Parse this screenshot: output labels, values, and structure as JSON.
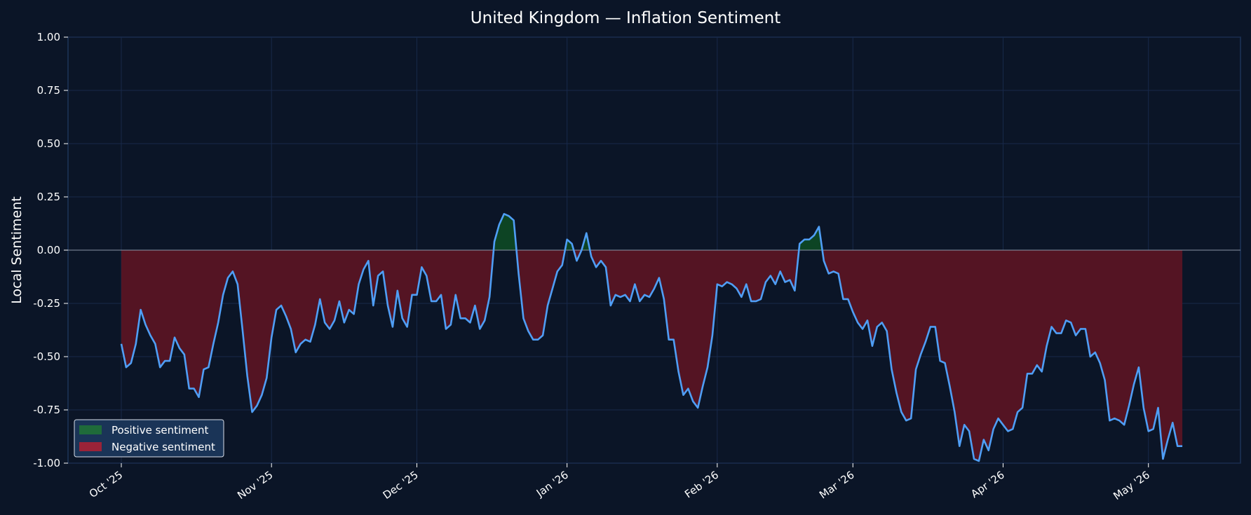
{
  "chart_data": {
    "type": "area",
    "title": "United Kingdom — Inflation Sentiment",
    "xlabel": "",
    "ylabel": "Local Sentiment",
    "ylim": [
      -1.0,
      1.0
    ],
    "yticks": [
      "1.00",
      "0.75",
      "0.50",
      "0.25",
      "0.00",
      "-0.25",
      "-0.50",
      "-0.75",
      "-1.00"
    ],
    "xticks": [
      {
        "date": "2025-10-01",
        "label": "Oct '25"
      },
      {
        "date": "2025-11-01",
        "label": "Nov '25"
      },
      {
        "date": "2025-12-01",
        "label": "Dec '25"
      },
      {
        "date": "2026-01-01",
        "label": "Jan '26"
      },
      {
        "date": "2026-02-01",
        "label": "Feb '26"
      },
      {
        "date": "2026-03-01",
        "label": "Mar '26"
      },
      {
        "date": "2026-04-01",
        "label": "Apr '26"
      },
      {
        "date": "2026-05-01",
        "label": "May '26"
      }
    ],
    "xlim": [
      "2025-09-20",
      "2026-05-20"
    ],
    "grid": true,
    "legend_position": "lower-left",
    "legend": [
      "Positive sentiment",
      "Negative sentiment"
    ],
    "colors": {
      "background": "#0b1527",
      "line": "#4f9ef5",
      "positive": "#0d4424",
      "negative": "#541423",
      "grid": "#18294a",
      "zero_line": "#8a94a6",
      "legend_bg": "#1a3457",
      "legend_positive": "#1f6b3a",
      "legend_negative": "#9a2338"
    },
    "series": [
      {
        "start_date": "2025-10-01",
        "values": [
          -0.44,
          -0.55,
          -0.53,
          -0.44,
          -0.28,
          -0.35,
          -0.4,
          -0.44,
          -0.55,
          -0.52,
          -0.52,
          -0.41,
          -0.46,
          -0.49,
          -0.65,
          -0.65,
          -0.69,
          -0.56,
          -0.55,
          -0.44,
          -0.34,
          -0.21,
          -0.13,
          -0.1,
          -0.16,
          -0.37,
          -0.59,
          -0.76,
          -0.73,
          -0.68,
          -0.6,
          -0.41,
          -0.28,
          -0.26,
          -0.31,
          -0.37,
          -0.48,
          -0.44,
          -0.42,
          -0.43,
          -0.35,
          -0.23,
          -0.34,
          -0.37,
          -0.33,
          -0.24,
          -0.34,
          -0.28,
          -0.3,
          -0.16,
          -0.09,
          -0.05,
          -0.26,
          -0.12,
          -0.1,
          -0.26,
          -0.36,
          -0.19,
          -0.32,
          -0.36,
          -0.21,
          -0.21,
          -0.08,
          -0.12,
          -0.24,
          -0.24,
          -0.21,
          -0.37,
          -0.35,
          -0.21,
          -0.32,
          -0.32,
          -0.34,
          -0.26,
          -0.37,
          -0.33,
          -0.22,
          0.04,
          0.12,
          0.17,
          0.16,
          0.14,
          -0.11,
          -0.32,
          -0.38,
          -0.42,
          -0.42,
          -0.4,
          -0.26,
          -0.18,
          -0.1,
          -0.07,
          0.05,
          0.03,
          -0.05,
          0.0,
          0.08,
          -0.03,
          -0.08,
          -0.05,
          -0.08,
          -0.26,
          -0.21,
          -0.22,
          -0.21,
          -0.24,
          -0.16,
          -0.24,
          -0.21,
          -0.22,
          -0.18,
          -0.13,
          -0.23,
          -0.42,
          -0.42,
          -0.57,
          -0.68,
          -0.65,
          -0.71,
          -0.74,
          -0.64,
          -0.55,
          -0.4,
          -0.16,
          -0.17,
          -0.15,
          -0.16,
          -0.18,
          -0.22,
          -0.16,
          -0.24,
          -0.24,
          -0.23,
          -0.15,
          -0.12,
          -0.16,
          -0.1,
          -0.15,
          -0.14,
          -0.19,
          0.03,
          0.05,
          0.05,
          0.07,
          0.11,
          -0.05,
          -0.11,
          -0.1,
          -0.11,
          -0.23,
          -0.23,
          -0.29,
          -0.34,
          -0.37,
          -0.33,
          -0.45,
          -0.36,
          -0.34,
          -0.38,
          -0.56,
          -0.67,
          -0.76,
          -0.8,
          -0.79,
          -0.56,
          -0.49,
          -0.43,
          -0.36,
          -0.36,
          -0.52,
          -0.53,
          -0.64,
          -0.76,
          -0.92,
          -0.82,
          -0.85,
          -0.98,
          -0.99,
          -0.89,
          -0.94,
          -0.84,
          -0.79,
          -0.82,
          -0.85,
          -0.84,
          -0.76,
          -0.74,
          -0.58,
          -0.58,
          -0.54,
          -0.57,
          -0.45,
          -0.36,
          -0.39,
          -0.39,
          -0.33,
          -0.34,
          -0.4,
          -0.37,
          -0.37,
          -0.5,
          -0.48,
          -0.53,
          -0.61,
          -0.8,
          -0.79,
          -0.8,
          -0.82,
          -0.73,
          -0.63,
          -0.55,
          -0.74,
          -0.85,
          -0.84,
          -0.74,
          -0.98,
          -0.89,
          -0.81,
          -0.92,
          -0.92
        ]
      }
    ]
  }
}
